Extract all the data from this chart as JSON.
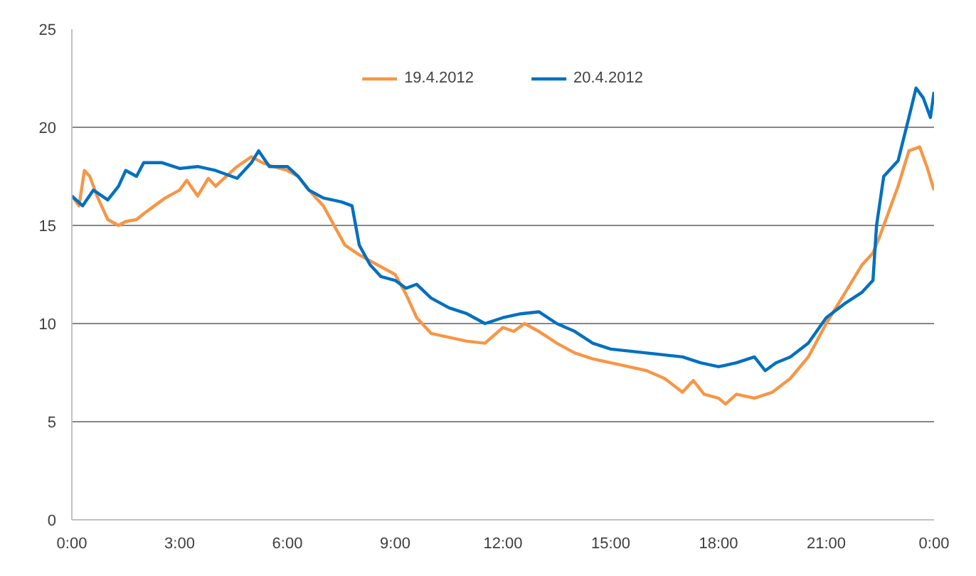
{
  "chart_data": {
    "type": "line",
    "x": [
      0,
      0.2,
      0.35,
      0.5,
      0.7,
      1.0,
      1.3,
      1.5,
      1.8,
      2.0,
      2.3,
      2.6,
      3.0,
      3.2,
      3.5,
      3.8,
      4.0,
      4.3,
      4.6,
      5.0,
      5.3,
      5.6,
      6.0,
      6.3,
      6.6,
      7.0,
      7.3,
      7.6,
      8.0,
      8.5,
      9.0,
      9.3,
      9.6,
      10.0,
      10.5,
      11.0,
      11.5,
      12.0,
      12.3,
      12.6,
      13.0,
      13.5,
      14.0,
      14.5,
      15.0,
      15.5,
      16.0,
      16.5,
      17.0,
      17.3,
      17.6,
      18.0,
      18.2,
      18.5,
      19.0,
      19.5,
      20.0,
      20.5,
      21.0,
      21.5,
      22.0,
      22.3,
      22.5,
      23.0,
      23.3,
      23.6,
      23.8,
      24.0
    ],
    "series": [
      {
        "name": "19.4.2012",
        "color": "#f79646",
        "values": [
          16.5,
          16.0,
          17.8,
          17.5,
          16.5,
          15.3,
          15.0,
          15.2,
          15.3,
          15.6,
          16.0,
          16.4,
          16.8,
          17.3,
          16.5,
          17.4,
          17.0,
          17.5,
          18.0,
          18.5,
          18.2,
          18.0,
          17.8,
          17.5,
          16.8,
          16.0,
          15.0,
          14.0,
          13.5,
          13.0,
          12.5,
          11.5,
          10.3,
          9.5,
          9.3,
          9.1,
          9.0,
          9.8,
          9.6,
          10.0,
          9.6,
          9.0,
          8.5,
          8.2,
          8.0,
          7.8,
          7.6,
          7.2,
          6.5,
          7.1,
          6.4,
          6.2,
          5.9,
          6.4,
          6.2,
          6.5,
          7.2,
          8.3,
          10.0,
          11.5,
          13.0,
          13.6,
          14.5,
          17.0,
          18.8,
          19.0,
          18.0,
          16.8
        ]
      },
      {
        "name": "20.4.2012",
        "color": "#0070c0",
        "x": [
          0,
          0.3,
          0.6,
          1.0,
          1.3,
          1.5,
          1.8,
          2.0,
          2.5,
          3.0,
          3.5,
          4.0,
          4.3,
          4.6,
          5.0,
          5.2,
          5.5,
          6.0,
          6.3,
          6.6,
          7.0,
          7.5,
          7.8,
          8.0,
          8.3,
          8.6,
          9.0,
          9.3,
          9.6,
          10.0,
          10.5,
          11.0,
          11.5,
          12.0,
          12.5,
          13.0,
          13.5,
          14.0,
          14.5,
          15.0,
          15.5,
          16.0,
          16.5,
          17.0,
          17.5,
          18.0,
          18.5,
          19.0,
          19.3,
          19.6,
          20.0,
          20.5,
          21.0,
          21.5,
          22.0,
          22.3,
          22.4,
          22.6,
          23.0,
          23.3,
          23.5,
          23.7,
          23.9,
          24.0
        ],
        "values": [
          16.5,
          16.0,
          16.8,
          16.3,
          17.0,
          17.8,
          17.5,
          18.2,
          18.2,
          17.9,
          18.0,
          17.8,
          17.6,
          17.4,
          18.2,
          18.8,
          18.0,
          18.0,
          17.5,
          16.8,
          16.4,
          16.2,
          16.0,
          14.0,
          13.0,
          12.4,
          12.2,
          11.8,
          12.0,
          11.3,
          10.8,
          10.5,
          10.0,
          10.3,
          10.5,
          10.6,
          10.0,
          9.6,
          9.0,
          8.7,
          8.6,
          8.5,
          8.4,
          8.3,
          8.0,
          7.8,
          8.0,
          8.3,
          7.6,
          8.0,
          8.3,
          9.0,
          10.3,
          11.0,
          11.6,
          12.2,
          15.0,
          17.5,
          18.3,
          20.5,
          22.0,
          21.5,
          20.5,
          21.8
        ]
      }
    ],
    "xlim": [
      0,
      24
    ],
    "xticks": [
      {
        "value": 0,
        "label": "0:00"
      },
      {
        "value": 3,
        "label": "3:00"
      },
      {
        "value": 6,
        "label": "6:00"
      },
      {
        "value": 9,
        "label": "9:00"
      },
      {
        "value": 12,
        "label": "12:00"
      },
      {
        "value": 15,
        "label": "15:00"
      },
      {
        "value": 18,
        "label": "18:00"
      },
      {
        "value": 21,
        "label": "21:00"
      },
      {
        "value": 24,
        "label": "0:00"
      }
    ],
    "ylim": [
      0,
      25
    ],
    "yticks": [
      0,
      5,
      10,
      15,
      20,
      25
    ],
    "grid": "y",
    "legend": "top"
  }
}
